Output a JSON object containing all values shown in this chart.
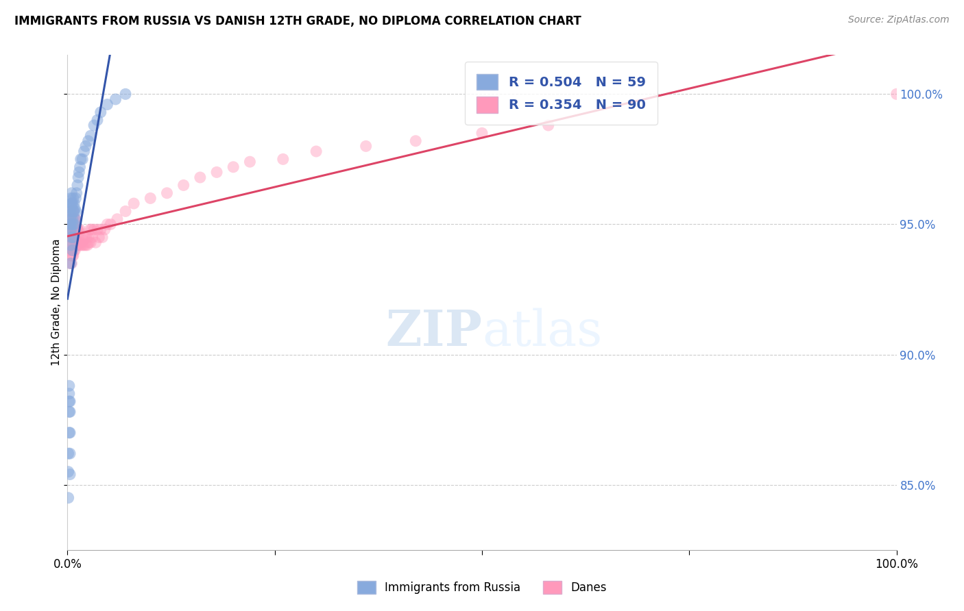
{
  "title": "IMMIGRANTS FROM RUSSIA VS DANISH 12TH GRADE, NO DIPLOMA CORRELATION CHART",
  "source": "Source: ZipAtlas.com",
  "ylabel": "12th Grade, No Diploma",
  "blue_color": "#88AADD",
  "pink_color": "#FF99BB",
  "blue_line_color": "#3355AA",
  "pink_line_color": "#DD4466",
  "legend_entry1": "R = 0.504   N = 59",
  "legend_entry2": "R = 0.354   N = 90",
  "legend_bottom1": "Immigrants from Russia",
  "legend_bottom2": "Danes",
  "xlim": [
    0,
    1.0
  ],
  "ylim": [
    0.825,
    1.015
  ],
  "yticks": [
    0.85,
    0.9,
    0.95,
    1.0
  ],
  "ytick_labels": [
    "85.0%",
    "90.0%",
    "95.0%",
    "100.0%"
  ],
  "blue_x": [
    0.001,
    0.001,
    0.001,
    0.002,
    0.002,
    0.002,
    0.002,
    0.002,
    0.003,
    0.003,
    0.003,
    0.003,
    0.003,
    0.003,
    0.003,
    0.004,
    0.004,
    0.004,
    0.004,
    0.004,
    0.004,
    0.004,
    0.005,
    0.005,
    0.005,
    0.005,
    0.005,
    0.006,
    0.006,
    0.006,
    0.006,
    0.007,
    0.007,
    0.007,
    0.007,
    0.008,
    0.008,
    0.008,
    0.009,
    0.009,
    0.01,
    0.01,
    0.011,
    0.012,
    0.013,
    0.014,
    0.015,
    0.016,
    0.018,
    0.02,
    0.022,
    0.025,
    0.028,
    0.032,
    0.036,
    0.04,
    0.048,
    0.058,
    0.07
  ],
  "blue_y": [
    0.845,
    0.855,
    0.862,
    0.87,
    0.878,
    0.882,
    0.888,
    0.885,
    0.854,
    0.862,
    0.87,
    0.878,
    0.882,
    0.95,
    0.955,
    0.935,
    0.942,
    0.948,
    0.952,
    0.956,
    0.958,
    0.96,
    0.945,
    0.95,
    0.954,
    0.958,
    0.962,
    0.94,
    0.948,
    0.952,
    0.958,
    0.945,
    0.95,
    0.955,
    0.96,
    0.95,
    0.955,
    0.958,
    0.952,
    0.956,
    0.955,
    0.96,
    0.962,
    0.965,
    0.968,
    0.97,
    0.972,
    0.975,
    0.975,
    0.978,
    0.98,
    0.982,
    0.984,
    0.988,
    0.99,
    0.993,
    0.996,
    0.998,
    1.0
  ],
  "pink_x": [
    0.001,
    0.002,
    0.002,
    0.002,
    0.003,
    0.003,
    0.003,
    0.003,
    0.004,
    0.004,
    0.004,
    0.004,
    0.004,
    0.005,
    0.005,
    0.005,
    0.005,
    0.005,
    0.006,
    0.006,
    0.006,
    0.006,
    0.007,
    0.007,
    0.007,
    0.007,
    0.007,
    0.008,
    0.008,
    0.008,
    0.008,
    0.009,
    0.009,
    0.009,
    0.009,
    0.01,
    0.01,
    0.01,
    0.01,
    0.011,
    0.011,
    0.012,
    0.012,
    0.013,
    0.013,
    0.014,
    0.014,
    0.015,
    0.015,
    0.016,
    0.017,
    0.018,
    0.019,
    0.02,
    0.021,
    0.022,
    0.023,
    0.024,
    0.025,
    0.026,
    0.027,
    0.028,
    0.029,
    0.03,
    0.032,
    0.034,
    0.036,
    0.038,
    0.04,
    0.042,
    0.045,
    0.048,
    0.052,
    0.06,
    0.07,
    0.08,
    0.1,
    0.12,
    0.14,
    0.16,
    0.18,
    0.2,
    0.22,
    0.26,
    0.3,
    0.36,
    0.42,
    0.5,
    0.58,
    1.0
  ],
  "pink_y": [
    0.948,
    0.94,
    0.948,
    0.952,
    0.935,
    0.94,
    0.945,
    0.95,
    0.938,
    0.942,
    0.945,
    0.948,
    0.952,
    0.935,
    0.94,
    0.945,
    0.95,
    0.955,
    0.938,
    0.942,
    0.945,
    0.95,
    0.938,
    0.942,
    0.945,
    0.95,
    0.955,
    0.94,
    0.944,
    0.948,
    0.952,
    0.94,
    0.945,
    0.948,
    0.952,
    0.942,
    0.945,
    0.948,
    0.952,
    0.942,
    0.948,
    0.942,
    0.948,
    0.943,
    0.948,
    0.942,
    0.947,
    0.943,
    0.948,
    0.942,
    0.943,
    0.942,
    0.944,
    0.942,
    0.945,
    0.942,
    0.945,
    0.942,
    0.945,
    0.943,
    0.948,
    0.943,
    0.948,
    0.945,
    0.948,
    0.943,
    0.948,
    0.945,
    0.948,
    0.945,
    0.948,
    0.95,
    0.95,
    0.952,
    0.955,
    0.958,
    0.96,
    0.962,
    0.965,
    0.968,
    0.97,
    0.972,
    0.974,
    0.975,
    0.978,
    0.98,
    0.982,
    0.985,
    0.988,
    1.0
  ]
}
